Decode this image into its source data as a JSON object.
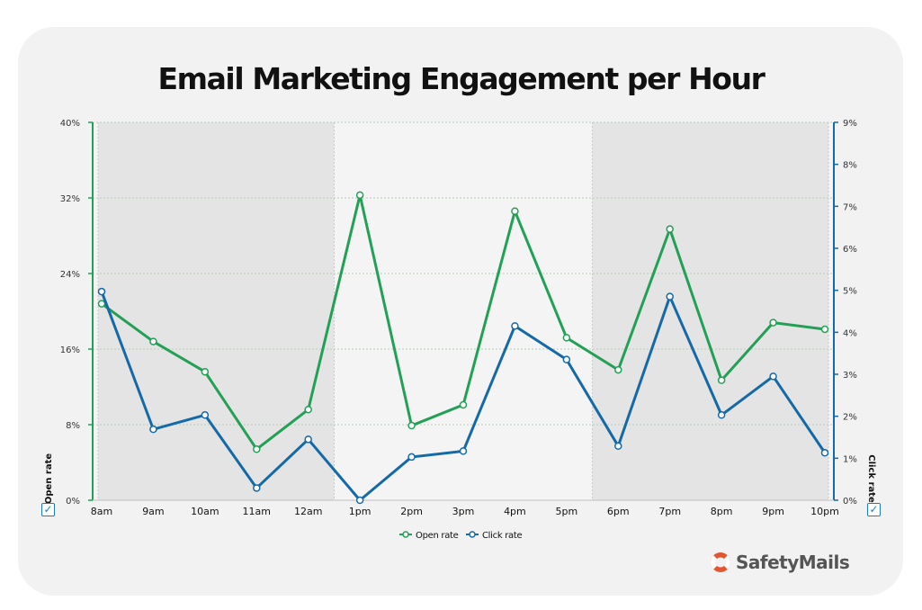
{
  "chart_data": {
    "type": "line",
    "title": "Email Marketing Engagement per Hour",
    "categories": [
      "8am",
      "9am",
      "10am",
      "11am",
      "12am",
      "1pm",
      "2pm",
      "3pm",
      "4pm",
      "5pm",
      "6pm",
      "7pm",
      "8pm",
      "9pm",
      "10pm"
    ],
    "series": [
      {
        "name": "Open rate",
        "axis": "left",
        "color": "#22a055",
        "values": [
          20.8,
          16.8,
          13.6,
          5.4,
          9.6,
          32.3,
          7.9,
          10.1,
          30.6,
          17.2,
          13.8,
          28.7,
          12.7,
          18.8,
          18.1
        ]
      },
      {
        "name": "Click rate",
        "axis": "right",
        "color": "#1469a8",
        "values": [
          4.97,
          1.69,
          2.03,
          0.29,
          1.45,
          0.0,
          1.03,
          1.17,
          4.15,
          3.35,
          1.29,
          4.85,
          2.03,
          2.95,
          1.13
        ]
      }
    ],
    "ylabel": "Open rate",
    "y2label": "Click rate",
    "ylim": [
      0,
      40
    ],
    "y2lim": [
      0,
      9
    ],
    "yticks": [
      "0%",
      "8%",
      "16%",
      "24%",
      "32%",
      "40%"
    ],
    "y2ticks": [
      "0%",
      "1%",
      "2%",
      "3%",
      "4%",
      "5%",
      "6%",
      "7%",
      "8%",
      "9%"
    ],
    "grid": true,
    "legend": "bottom-center",
    "shaded_ranges": [
      [
        "8am",
        "12am"
      ],
      [
        "6pm",
        "10pm"
      ]
    ],
    "left_axis_color": "#22a055",
    "right_axis_color": "#1469a8"
  },
  "controls": {
    "check_mark": "✓"
  },
  "brand": {
    "name": "SafetyMails"
  }
}
